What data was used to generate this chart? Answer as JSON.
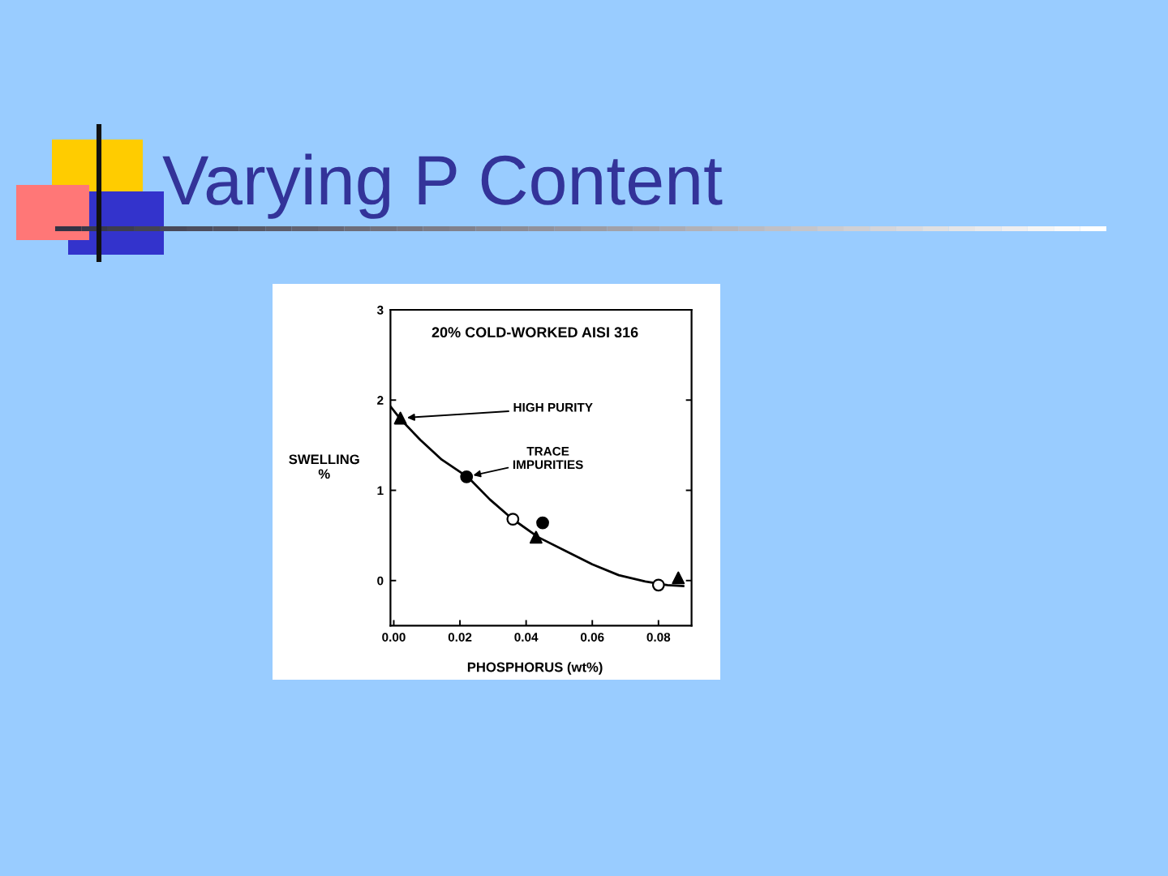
{
  "chart_data": {
    "type": "scatter",
    "title": "Varying P Content",
    "subtitle": "20% COLD-WORKED AISI 316",
    "xlabel": "PHOSPHORUS (wt%)",
    "ylabel": "SWELLING\n%",
    "annotations": [
      {
        "text": "HIGH PURITY",
        "x": 0.002,
        "y": 1.8
      },
      {
        "text": "TRACE\nIMPURITIES",
        "x": 0.022,
        "y": 1.15
      }
    ],
    "series": [
      {
        "marker": "triangle",
        "color": "#000000",
        "x": [
          0.002,
          0.043,
          0.086
        ],
        "values": [
          1.8,
          0.48,
          0.03
        ]
      },
      {
        "marker": "circle",
        "color": "#000000",
        "x": [
          0.022,
          0.045
        ],
        "values": [
          1.15,
          0.64
        ]
      },
      {
        "marker": "circle",
        "color": "#ffffff",
        "x": [
          0.036,
          0.08
        ],
        "values": [
          0.68,
          -0.05
        ]
      },
      {
        "type": "line",
        "marker": "none",
        "line_style": "solid",
        "color": "#000000",
        "x": [
          -0.001,
          0.002,
          0.008,
          0.0145,
          0.0226,
          0.029,
          0.0356,
          0.0437,
          0.0518,
          0.06,
          0.068,
          0.076,
          0.0827,
          0.0875
        ],
        "values": [
          1.93,
          1.79,
          1.56,
          1.34,
          1.14,
          0.9,
          0.69,
          0.48,
          0.33,
          0.18,
          0.06,
          -0.01,
          -0.05,
          -0.06
        ]
      }
    ],
    "xlim": [
      -0.001,
      0.09
    ],
    "ylim": [
      -0.5,
      3
    ],
    "xticks": [
      {
        "value": 0,
        "label": "0.00"
      },
      {
        "value": 0.02,
        "label": "0.02"
      },
      {
        "value": 0.04,
        "label": "0.04"
      },
      {
        "value": 0.06,
        "label": "0.06"
      },
      {
        "value": 0.08,
        "label": "0.08"
      }
    ],
    "yticks": [
      0,
      1,
      2,
      3
    ]
  }
}
